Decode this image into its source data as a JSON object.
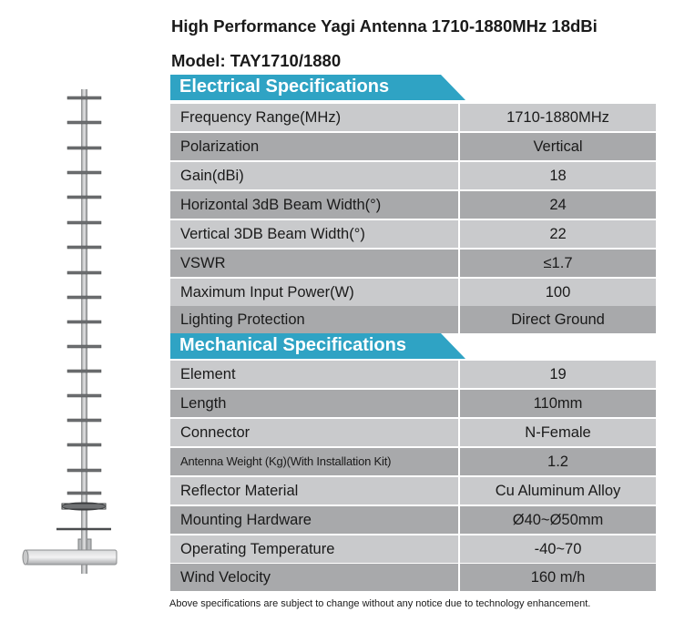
{
  "header": {
    "title": "High Performance Yagi Antenna 1710-1880MHz 18dBi",
    "model": "Model: TAY1710/1880"
  },
  "electrical": {
    "heading": "Electrical Specifications",
    "rows": [
      {
        "label": "Frequency Range(MHz)",
        "value": "1710-1880MHz"
      },
      {
        "label": "Polarization",
        "value": "Vertical"
      },
      {
        "label": "Gain(dBi)",
        "value": "18"
      },
      {
        "label": "Horizontal 3dB Beam Width(°)",
        "value": "24"
      },
      {
        "label": "Vertical 3DB Beam Width(°)",
        "value": "22"
      },
      {
        "label": "VSWR",
        "value": "≤1.7"
      },
      {
        "label": "Maximum Input Power(W)",
        "value": "100"
      },
      {
        "label": "Lighting Protection",
        "value": "Direct Ground"
      }
    ]
  },
  "mechanical": {
    "heading": "Mechanical Specifications",
    "rows": [
      {
        "label": "Element",
        "value": "19"
      },
      {
        "label": "Length",
        "value": "110mm"
      },
      {
        "label": "Connector",
        "value": "N-Female"
      },
      {
        "label": "Antenna Weight (Kg)(With Installation Kit)",
        "value": "1.2"
      },
      {
        "label": "Reflector Material",
        "value": "Cu  Aluminum Alloy"
      },
      {
        "label": "Mounting Hardware",
        "value": "Ø40~Ø50mm"
      },
      {
        "label": "Operating Temperature",
        "value": "-40~70"
      },
      {
        "label": "Wind Velocity",
        "value": "160 m/h"
      }
    ]
  },
  "footer": {
    "note": "Above specifications are subject to change without any notice due to technology enhancement."
  },
  "colors": {
    "section_header": "#2fa3c4",
    "row_light": "#c9cacc",
    "row_dark": "#a8a9ab"
  }
}
